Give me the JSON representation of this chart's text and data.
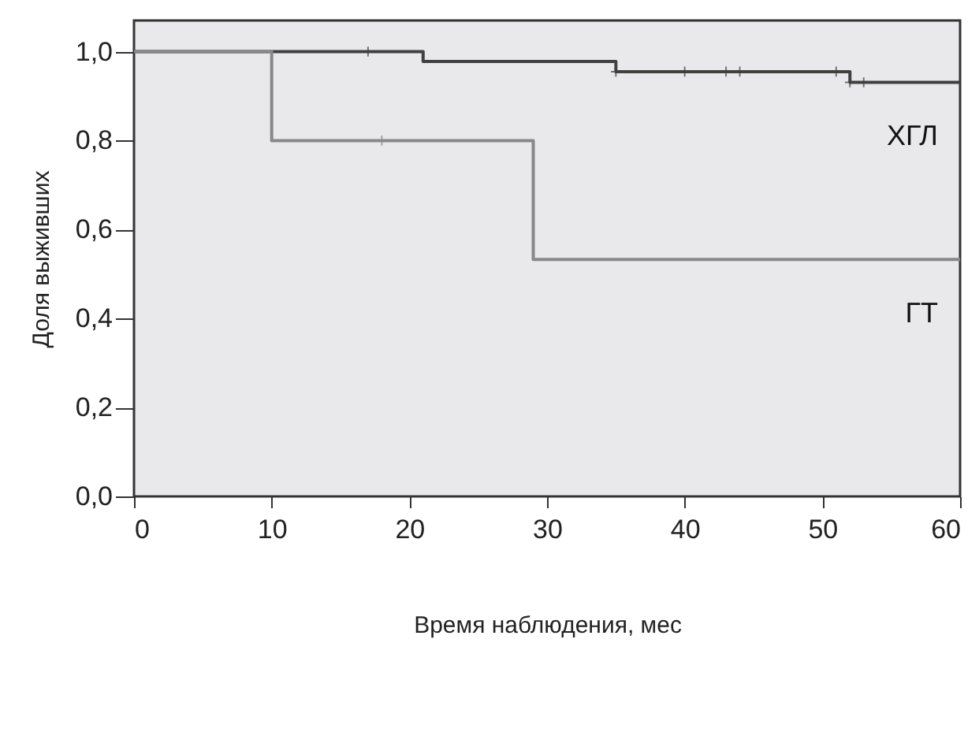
{
  "chart_data": {
    "type": "step",
    "xlabel": "Время наблюдения, мес",
    "ylabel": "Доля выживших",
    "xlim": [
      0,
      60
    ],
    "xticks": [
      0,
      10,
      20,
      30,
      40,
      50,
      60
    ],
    "ylim": [
      0,
      1.07
    ],
    "yticks": [
      {
        "value": 0,
        "label": "0,0"
      },
      {
        "value": 0.2,
        "label": "0,2"
      },
      {
        "value": 0.4,
        "label": "0,4"
      },
      {
        "value": 0.6,
        "label": "0,6"
      },
      {
        "value": 0.8,
        "label": "0,8"
      },
      {
        "value": 1.0,
        "label": "1,0"
      }
    ],
    "grid": false,
    "series": [
      {
        "name": "ХГЛ",
        "color": "#404040",
        "x": [
          0,
          21,
          35,
          52,
          60
        ],
        "values": [
          1.0,
          0.978,
          0.955,
          0.931,
          0.931
        ]
      },
      {
        "name": "ГТ",
        "color": "#888888",
        "x": [
          0,
          10,
          29,
          60
        ],
        "values": [
          1.0,
          0.8,
          0.533,
          0.533
        ]
      },
      {
        "type": "scatter",
        "marker": "cross",
        "color": "#404040",
        "x": [
          17,
          35,
          40,
          43,
          44,
          51,
          52,
          53
        ],
        "values": [
          1.0,
          0.955,
          0.955,
          0.955,
          0.955,
          0.955,
          0.931,
          0.931
        ]
      },
      {
        "type": "scatter",
        "marker": "cross",
        "color": "#888888",
        "x": [
          18
        ],
        "values": [
          0.8
        ]
      }
    ]
  }
}
